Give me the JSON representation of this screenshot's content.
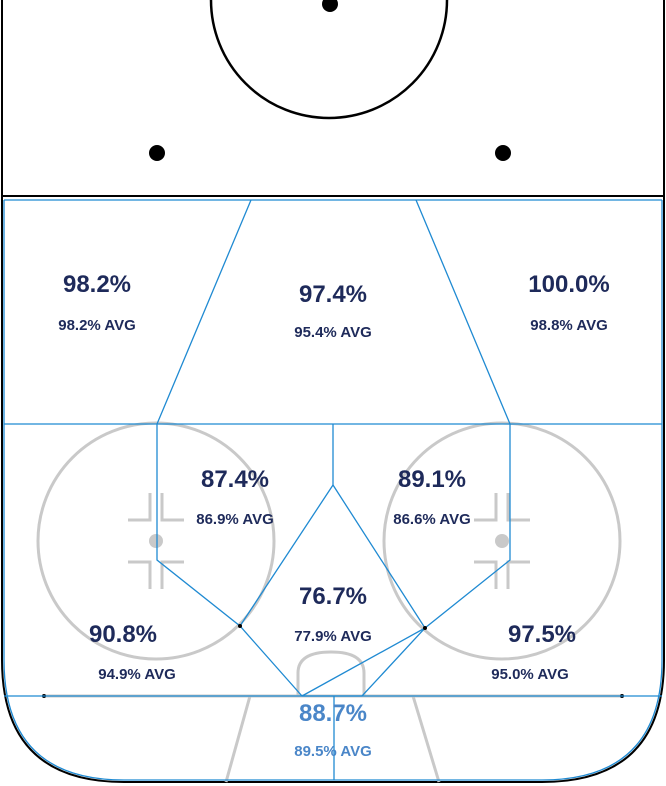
{
  "colors": {
    "rink_line": "#000000",
    "zone_line": "#1f8ad2",
    "faceoff_gray": "#c9c9c9",
    "label_dark": "#1e2a5a",
    "label_highlight": "#4a86c8"
  },
  "zones": [
    {
      "id": "top-left",
      "pct": "98.2%",
      "avg": "98.2% AVG",
      "highlight": false
    },
    {
      "id": "top-center",
      "pct": "97.4%",
      "avg": "95.4% AVG",
      "highlight": false
    },
    {
      "id": "top-right",
      "pct": "100.0%",
      "avg": "98.8% AVG",
      "highlight": false
    },
    {
      "id": "mid-left",
      "pct": "87.4%",
      "avg": "86.9% AVG",
      "highlight": false
    },
    {
      "id": "mid-right",
      "pct": "89.1%",
      "avg": "86.6% AVG",
      "highlight": false
    },
    {
      "id": "slot",
      "pct": "76.7%",
      "avg": "77.9% AVG",
      "highlight": false
    },
    {
      "id": "low-left",
      "pct": "90.8%",
      "avg": "94.9% AVG",
      "highlight": false
    },
    {
      "id": "low-right",
      "pct": "97.5%",
      "avg": "95.0% AVG",
      "highlight": false
    },
    {
      "id": "crease",
      "pct": "88.7%",
      "avg": "89.5% AVG",
      "highlight": true
    }
  ]
}
